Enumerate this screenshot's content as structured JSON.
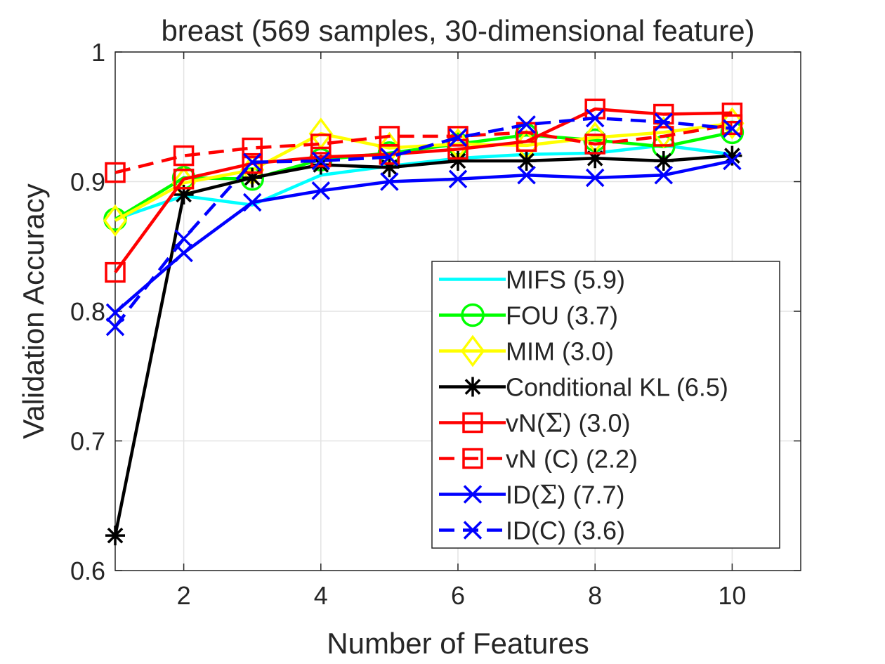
{
  "chart_data": {
    "type": "line",
    "title": "breast (569 samples, 30-dimensional feature)",
    "xlabel": "Number of Features",
    "ylabel": "Validation Accuracy",
    "xlim": [
      1,
      11
    ],
    "ylim": [
      0.6,
      1.0
    ],
    "xticks": [
      2,
      4,
      6,
      8,
      10
    ],
    "xtick_labels": [
      "2",
      "4",
      "6",
      "8",
      "10"
    ],
    "yticks": [
      0.6,
      0.7,
      0.8,
      0.9,
      1.0
    ],
    "ytick_labels": [
      "0.6",
      "0.7",
      "0.8",
      "0.9",
      "1"
    ],
    "grid": true,
    "legend_position": "lower-right",
    "x": [
      1,
      2,
      3,
      4,
      5,
      6,
      7,
      8,
      9,
      10
    ],
    "series": [
      {
        "name": "MIFS (5.9)",
        "label_main": "MIFS (5.9)",
        "color": "#00FFFF",
        "dash": "solid",
        "marker": "none",
        "values": [
          0.871,
          0.889,
          0.882,
          0.905,
          0.912,
          0.918,
          0.921,
          0.922,
          0.928,
          0.921
        ]
      },
      {
        "name": "FOU (3.7)",
        "label_main": "FOU (3.7)",
        "color": "#00FF00",
        "dash": "solid",
        "marker": "circle",
        "values": [
          0.871,
          0.903,
          0.902,
          0.917,
          0.922,
          0.929,
          0.936,
          0.932,
          0.927,
          0.938
        ]
      },
      {
        "name": "MIM (3.0)",
        "label_main": "MIM (3.0)",
        "color": "#FFFF00",
        "dash": "solid",
        "marker": "diamond",
        "values": [
          0.87,
          0.899,
          0.909,
          0.937,
          0.926,
          0.929,
          0.928,
          0.934,
          0.938,
          0.945
        ]
      },
      {
        "name": "Conditional KL (6.5)",
        "label_main": "Conditional KL (6.5)",
        "color": "#000000",
        "dash": "solid",
        "marker": "asterisk",
        "values": [
          0.627,
          0.89,
          0.903,
          0.913,
          0.911,
          0.916,
          0.916,
          0.918,
          0.916,
          0.92
        ]
      },
      {
        "name": "vN(Σ) (3.0)",
        "label_main": "vN(",
        "label_sym": "Σ",
        "label_tail": ") (3.0)",
        "color": "#FF0000",
        "dash": "solid",
        "marker": "square",
        "values": [
          0.83,
          0.902,
          0.914,
          0.919,
          0.921,
          0.925,
          0.931,
          0.956,
          0.952,
          0.953
        ]
      },
      {
        "name": "vN (C) (2.2)",
        "label_main": "vN (C) (2.2)",
        "color": "#FF0000",
        "dash": "dashed",
        "marker": "square",
        "values": [
          0.907,
          0.92,
          0.926,
          0.929,
          0.935,
          0.935,
          0.938,
          0.929,
          0.935,
          0.944
        ]
      },
      {
        "name": "ID(Σ) (7.7)",
        "label_main": "ID(",
        "label_sym": "Σ",
        "label_tail": ") (7.7)",
        "color": "#0000FF",
        "dash": "solid",
        "marker": "x",
        "values": [
          0.799,
          0.845,
          0.884,
          0.893,
          0.9,
          0.902,
          0.905,
          0.903,
          0.905,
          0.916
        ]
      },
      {
        "name": "ID(C) (3.6)",
        "label_main": "ID(C) (3.6)",
        "color": "#0000FF",
        "dash": "dashed",
        "marker": "x",
        "values": [
          0.788,
          0.856,
          0.915,
          0.916,
          0.919,
          0.934,
          0.944,
          0.949,
          0.946,
          0.941
        ]
      }
    ]
  }
}
